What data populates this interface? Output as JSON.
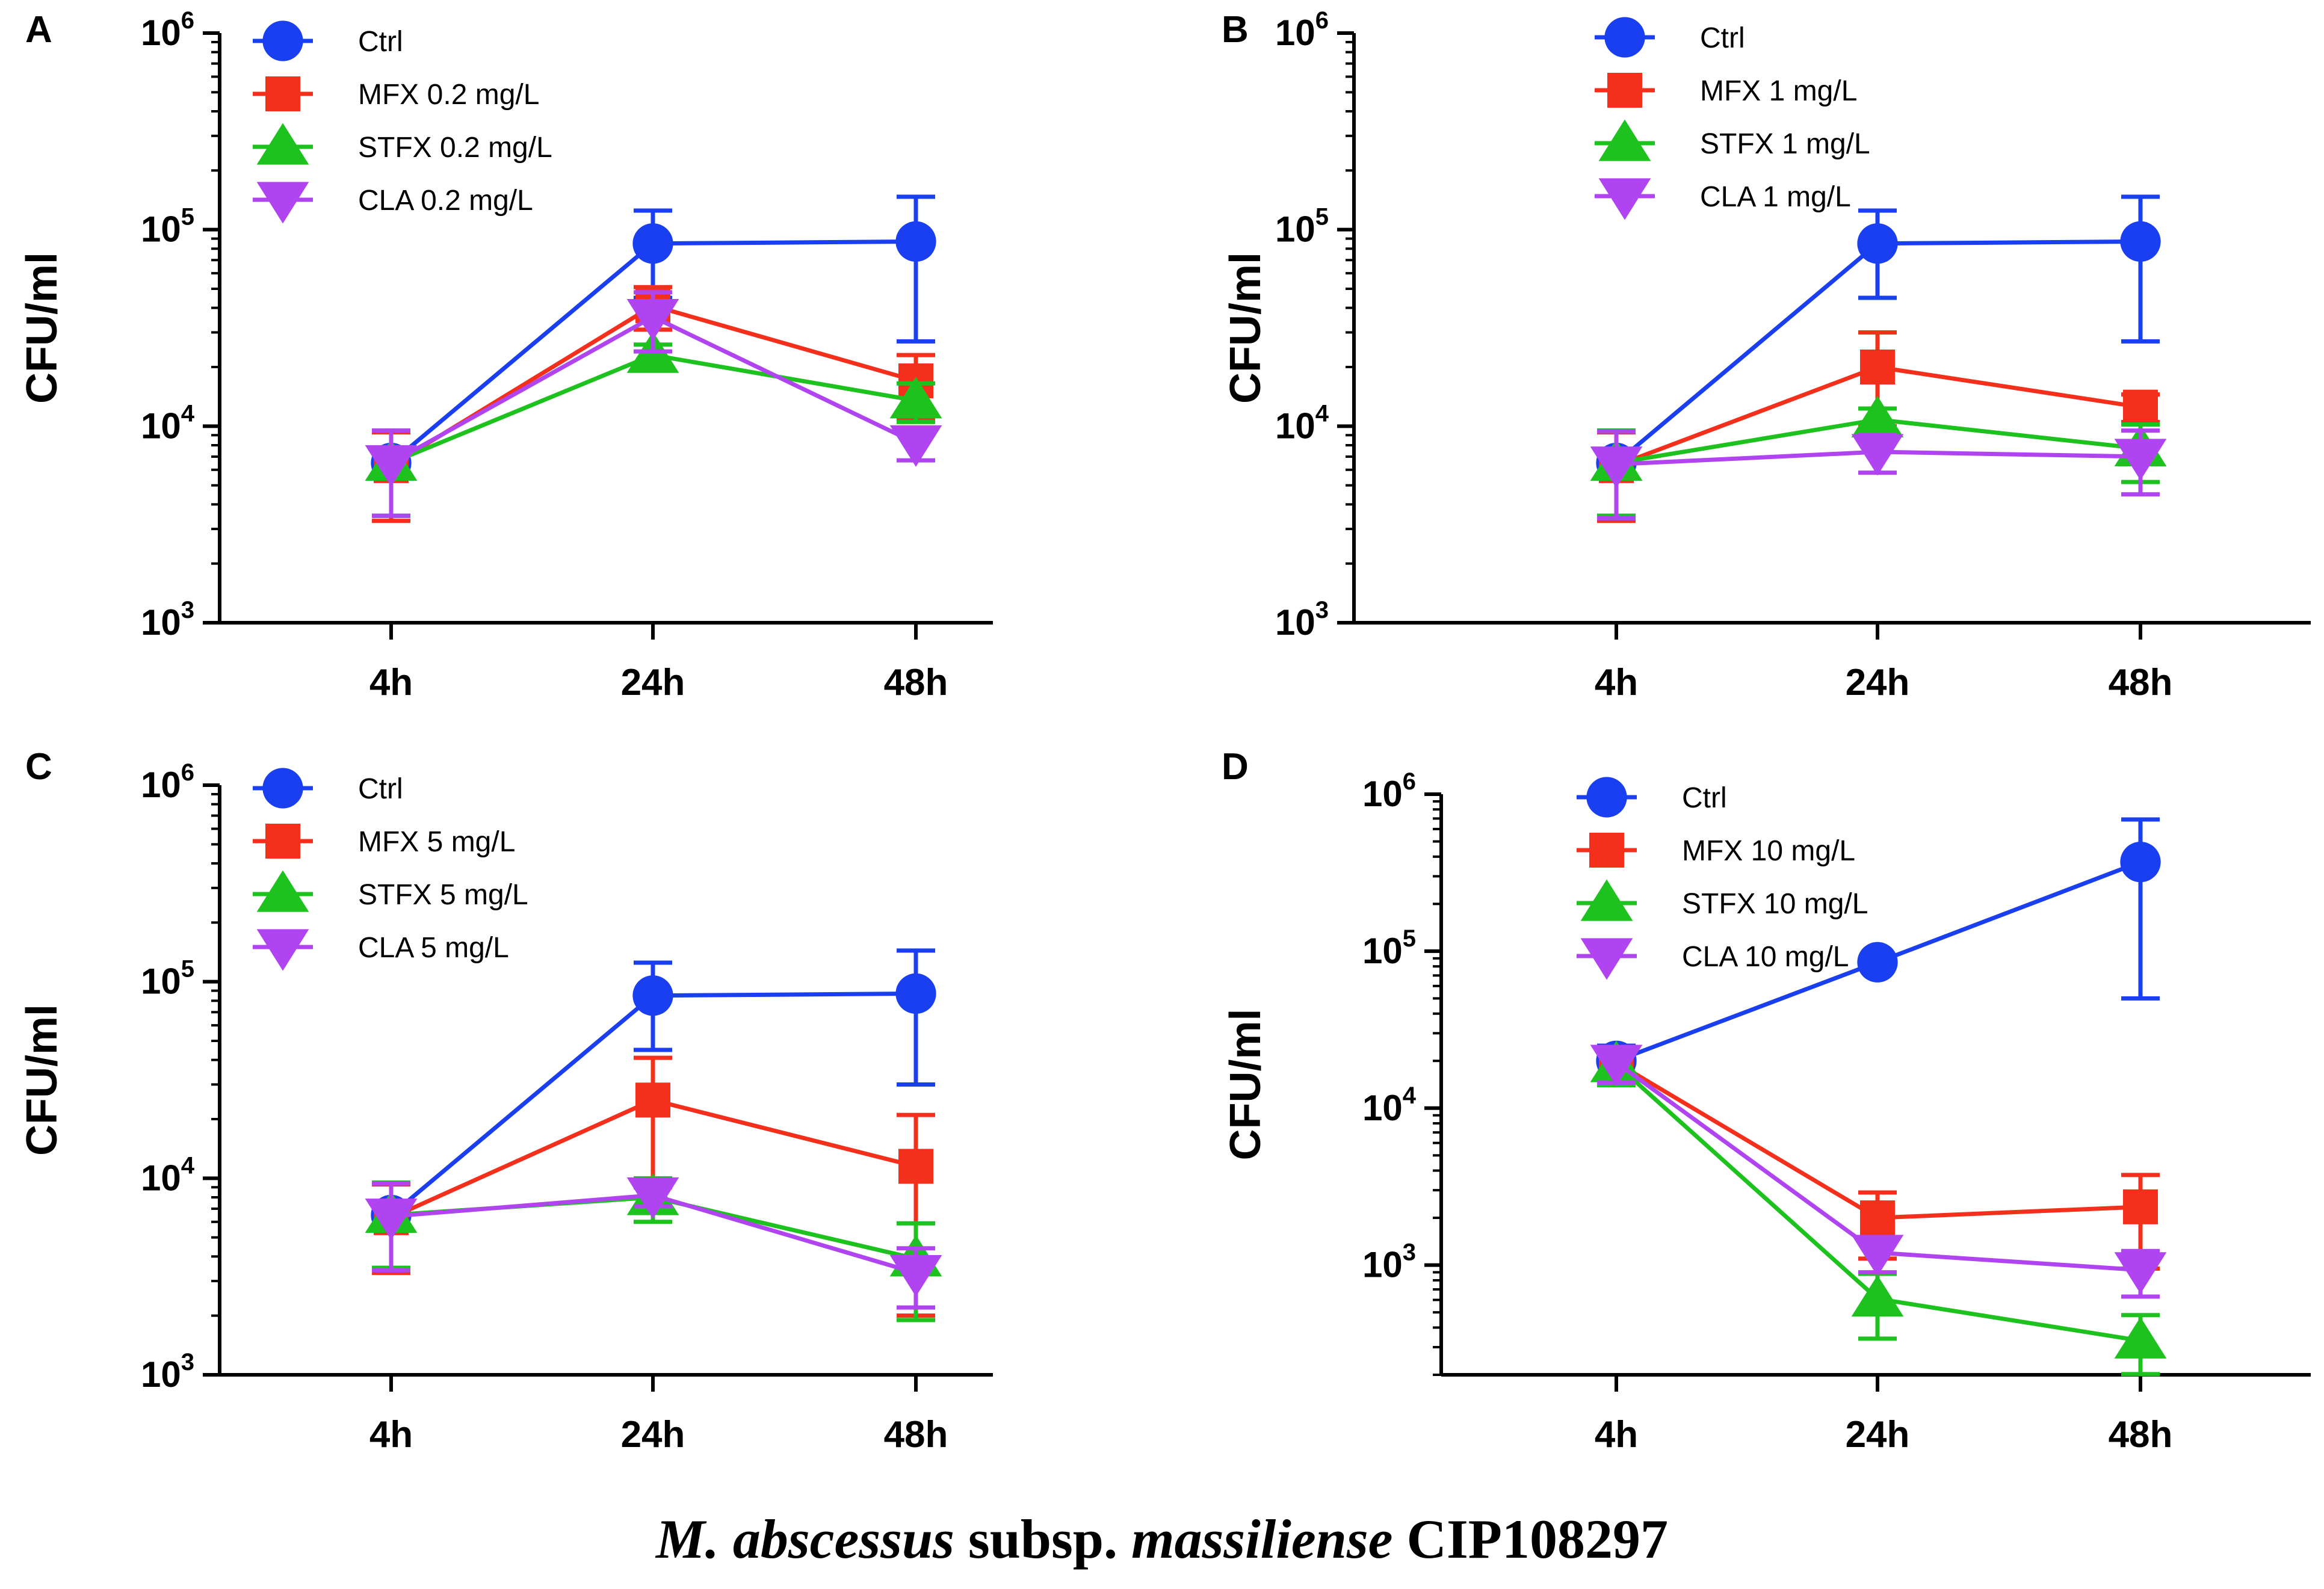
{
  "caption": {
    "species": "M. abscessus",
    "subsp_word": "subsp.",
    "subspecies": "massiliense",
    "strain": "CIP108297"
  },
  "series_styles": [
    {
      "key": "ctrl",
      "color": "#1a3ff0",
      "marker": "circle"
    },
    {
      "key": "mfx",
      "color": "#f4301c",
      "marker": "square"
    },
    {
      "key": "stfx",
      "color": "#1ec21e",
      "marker": "triangle-up"
    },
    {
      "key": "cla",
      "color": "#b044f0",
      "marker": "triangle-down"
    }
  ],
  "chart_data": [
    {
      "panel": "A",
      "type": "line",
      "xlabel": "",
      "ylabel": "CFU/ml",
      "yscale": "log",
      "ylim": [
        1000,
        1000000
      ],
      "yticks": [
        {
          "base": "10",
          "exp": "3"
        },
        {
          "base": "10",
          "exp": "4"
        },
        {
          "base": "10",
          "exp": "5"
        },
        {
          "base": "10",
          "exp": "6"
        }
      ],
      "categories": [
        "4h",
        "24h",
        "48h"
      ],
      "series": [
        {
          "name": "Ctrl",
          "values": [
            6500,
            85000,
            87000
          ],
          "err": [
            3000,
            40000,
            60000
          ]
        },
        {
          "name": "MFX 0.2 mg/L",
          "values": [
            6300,
            41000,
            17000
          ],
          "err": [
            3000,
            10000,
            6000
          ]
        },
        {
          "name": "STFX 0.2 mg/L",
          "values": [
            6500,
            23000,
            13500
          ],
          "err": [
            3000,
            3000,
            3000
          ]
        },
        {
          "name": "CLA 0.2 mg/L",
          "values": [
            6500,
            36000,
            8200
          ],
          "err": [
            3000,
            12000,
            1500
          ]
        }
      ]
    },
    {
      "panel": "B",
      "type": "line",
      "xlabel": "",
      "ylabel": "CFU/ml",
      "yscale": "log",
      "ylim": [
        1000,
        1000000
      ],
      "yticks": [
        {
          "base": "10",
          "exp": "3"
        },
        {
          "base": "10",
          "exp": "4"
        },
        {
          "base": "10",
          "exp": "5"
        },
        {
          "base": "10",
          "exp": "6"
        }
      ],
      "categories": [
        "4h",
        "24h",
        "48h"
      ],
      "series": [
        {
          "name": "Ctrl",
          "values": [
            6500,
            85000,
            87000
          ],
          "err": [
            3000,
            40000,
            60000
          ]
        },
        {
          "name": "MFX 1 mg/L",
          "values": [
            6300,
            20000,
            12500
          ],
          "err": [
            3000,
            10000,
            2000
          ]
        },
        {
          "name": "STFX 1 mg/L",
          "values": [
            6500,
            10800,
            7700
          ],
          "err": [
            3000,
            1500,
            2500
          ]
        },
        {
          "name": "CLA 1 mg/L",
          "values": [
            6400,
            7400,
            7000
          ],
          "err": [
            3000,
            1600,
            2500
          ]
        }
      ]
    },
    {
      "panel": "C",
      "type": "line",
      "xlabel": "",
      "ylabel": "CFU/ml",
      "yscale": "log",
      "ylim": [
        1000,
        1000000
      ],
      "yticks": [
        {
          "base": "10",
          "exp": "3"
        },
        {
          "base": "10",
          "exp": "4"
        },
        {
          "base": "10",
          "exp": "5"
        },
        {
          "base": "10",
          "exp": "6"
        }
      ],
      "categories": [
        "4h",
        "24h",
        "48h"
      ],
      "series": [
        {
          "name": "Ctrl",
          "values": [
            6500,
            85000,
            87000
          ],
          "err": [
            3000,
            40000,
            57000
          ]
        },
        {
          "name": "MFX 5 mg/L",
          "values": [
            6300,
            25000,
            11500
          ],
          "err": [
            3000,
            16000,
            9500
          ]
        },
        {
          "name": "STFX 5 mg/L",
          "values": [
            6500,
            8000,
            3900
          ],
          "err": [
            3000,
            2000,
            2000
          ]
        },
        {
          "name": "CLA 5 mg/L",
          "values": [
            6400,
            8200,
            3300
          ],
          "err": [
            3000,
            1000,
            1100
          ]
        }
      ]
    },
    {
      "panel": "D",
      "type": "line",
      "xlabel": "",
      "ylabel": "CFU/ml",
      "yscale": "log",
      "ylim": [
        200,
        1000000
      ],
      "yticks": [
        {
          "base": "10",
          "exp": "3"
        },
        {
          "base": "10",
          "exp": "4"
        },
        {
          "base": "10",
          "exp": "5"
        },
        {
          "base": "10",
          "exp": "6"
        }
      ],
      "categories": [
        "4h",
        "24h",
        "48h"
      ],
      "series": [
        {
          "name": "Ctrl",
          "values": [
            20000,
            85000,
            370000
          ],
          "err": [
            5000,
            5000,
            320000
          ]
        },
        {
          "name": "MFX 10 mg/L",
          "values": [
            19500,
            2000,
            2350
          ],
          "err": [
            5000,
            900,
            1400
          ]
        },
        {
          "name": "STFX 10 mg/L",
          "values": [
            19000,
            610,
            330
          ],
          "err": [
            5000,
            270,
            150
          ]
        },
        {
          "name": "CLA 10 mg/L",
          "values": [
            19500,
            1200,
            930
          ],
          "err": [
            5000,
            300,
            300
          ]
        }
      ]
    }
  ]
}
